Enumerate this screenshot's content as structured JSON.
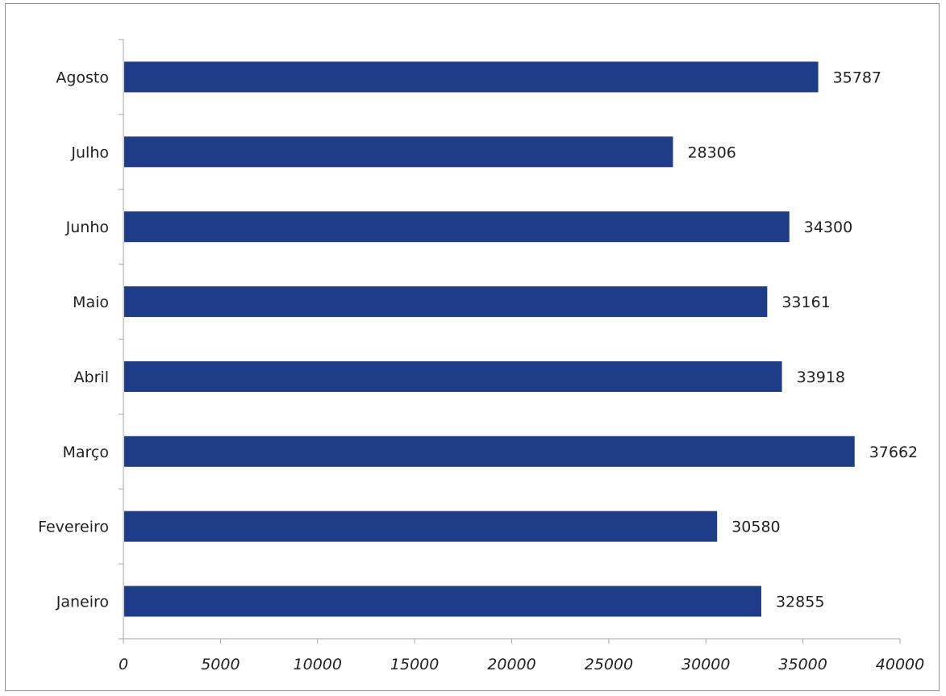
{
  "chart_data": {
    "type": "bar",
    "orientation": "horizontal",
    "categories": [
      "Janeiro",
      "Fevereiro",
      "Março",
      "Abril",
      "Maio",
      "Junho",
      "Julho",
      "Agosto"
    ],
    "values": [
      32855,
      30580,
      37662,
      33918,
      33161,
      34300,
      28306,
      35787
    ],
    "data_labels": [
      "32855",
      "30580",
      "37662",
      "33918",
      "33161",
      "34300",
      "28306",
      "35787"
    ],
    "x_ticks": [
      "0",
      "5000",
      "10000",
      "15000",
      "20000",
      "25000",
      "30000",
      "35000",
      "40000"
    ],
    "xlim": [
      0,
      40000
    ],
    "grid": false,
    "legend": false,
    "bar_color": "#1f3c88"
  }
}
